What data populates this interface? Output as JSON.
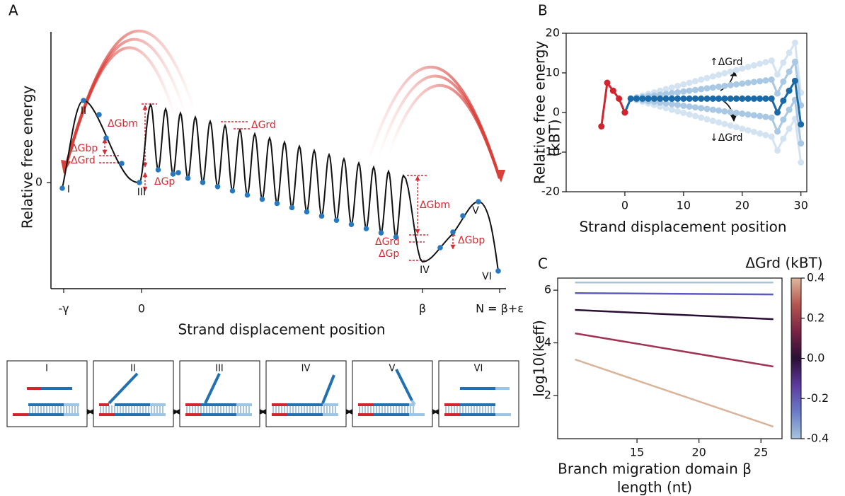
{
  "chart_data": [
    {
      "type": "schematic",
      "panel": "A",
      "ylabel": "Relative free energy",
      "xlabel": "Strand displacement position",
      "ytick_labels": [
        "0"
      ],
      "xtick_labels": [
        "-γ",
        "0",
        "β",
        "N = β+ε"
      ],
      "state_labels": [
        "I",
        "II",
        "III",
        "IV",
        "V",
        "VI"
      ],
      "annotations": [
        "ΔGbm",
        "ΔGbp",
        "ΔGrd",
        "ΔGp",
        "ΔGrd",
        "ΔGbm",
        "ΔGrd",
        "ΔGp",
        "ΔGbp"
      ],
      "box_labels": [
        "I",
        "II",
        "III",
        "IV",
        "V",
        "VI"
      ]
    },
    {
      "type": "line",
      "panel": "B",
      "ylabel": "Relative free energy",
      "ylabel2": "(kBT)",
      "xlabel": "Strand displacement position",
      "xlim": [
        -10,
        31
      ],
      "ylim": [
        -20,
        20
      ],
      "xticks": [
        0,
        10,
        20,
        30
      ],
      "yticks": [
        -20,
        -10,
        0,
        10,
        20
      ],
      "markers": true,
      "annotations": [
        "↑ΔGrd",
        "↓ΔGrd"
      ],
      "series": [
        {
          "color": "#d3e3f1",
          "x": [
            0,
            1,
            2,
            3,
            4,
            5,
            6,
            7,
            8,
            9,
            10,
            11,
            12,
            13,
            14,
            15,
            16,
            17,
            18,
            19,
            20,
            21,
            22,
            23,
            24,
            25,
            26,
            27,
            28,
            29,
            30
          ],
          "values": [
            0,
            3.5,
            3.9,
            4.3,
            4.7,
            5.1,
            5.5,
            5.9,
            6.3,
            6.7,
            7.1,
            7.5,
            7.9,
            8.3,
            8.7,
            9.1,
            9.5,
            9.9,
            10.3,
            10.7,
            11.1,
            11.5,
            11.9,
            12.3,
            12.7,
            13.1,
            9.6,
            12.6,
            15.1,
            17.6,
            5
          ]
        },
        {
          "color": "#d3e3f1",
          "x": [
            0,
            1,
            2,
            3,
            4,
            5,
            6,
            7,
            8,
            9,
            10,
            11,
            12,
            13,
            14,
            15,
            16,
            17,
            18,
            19,
            20,
            21,
            22,
            23,
            24,
            25,
            26,
            27,
            28,
            29,
            30
          ],
          "values": [
            0,
            3.5,
            3.1,
            2.7,
            2.3,
            1.9,
            1.5,
            1.1,
            0.7,
            0.3,
            -0.1,
            -0.5,
            -0.9,
            -1.3,
            -1.7,
            -2.1,
            -2.5,
            -2.9,
            -3.3,
            -3.7,
            -4.1,
            -4.5,
            -4.9,
            -5.3,
            -5.7,
            -6.1,
            -9.6,
            -6.6,
            -4.1,
            -1.6,
            -12.6
          ]
        },
        {
          "color": "#a9c8e4",
          "x": [
            0,
            1,
            2,
            3,
            4,
            5,
            6,
            7,
            8,
            9,
            10,
            11,
            12,
            13,
            14,
            15,
            16,
            17,
            18,
            19,
            20,
            21,
            22,
            23,
            24,
            25,
            26,
            27,
            28,
            29,
            30
          ],
          "values": [
            0,
            3.5,
            3.7,
            3.9,
            4.1,
            4.3,
            4.5,
            4.7,
            4.9,
            5.1,
            5.3,
            5.5,
            5.7,
            5.9,
            6.1,
            6.3,
            6.5,
            6.7,
            6.9,
            7.1,
            7.3,
            7.5,
            7.7,
            7.9,
            8.1,
            8.3,
            4.8,
            7.8,
            10.3,
            12.8,
            1.8
          ]
        },
        {
          "color": "#a9c8e4",
          "x": [
            0,
            1,
            2,
            3,
            4,
            5,
            6,
            7,
            8,
            9,
            10,
            11,
            12,
            13,
            14,
            15,
            16,
            17,
            18,
            19,
            20,
            21,
            22,
            23,
            24,
            25,
            26,
            27,
            28,
            29,
            30
          ],
          "values": [
            0,
            3.5,
            3.3,
            3.1,
            2.9,
            2.7,
            2.5,
            2.3,
            2.1,
            1.9,
            1.7,
            1.5,
            1.3,
            1.1,
            0.9,
            0.7,
            0.5,
            0.3,
            0.1,
            -0.1,
            -0.3,
            -0.5,
            -0.7,
            -0.9,
            -1.1,
            -1.3,
            -4.8,
            -1.8,
            0.7,
            3.2,
            -7.8
          ]
        },
        {
          "color": "#1b6aa8",
          "x": [
            0,
            1,
            2,
            3,
            4,
            5,
            6,
            7,
            8,
            9,
            10,
            11,
            12,
            13,
            14,
            15,
            16,
            17,
            18,
            19,
            20,
            21,
            22,
            23,
            24,
            25,
            26,
            27,
            28,
            29,
            30
          ],
          "values": [
            0,
            3.5,
            3.5,
            3.5,
            3.5,
            3.5,
            3.5,
            3.5,
            3.5,
            3.5,
            3.5,
            3.5,
            3.5,
            3.5,
            3.5,
            3.5,
            3.5,
            3.5,
            3.5,
            3.5,
            3.5,
            3.5,
            3.5,
            3.5,
            3.5,
            3.5,
            0,
            3,
            5.5,
            8,
            -3
          ]
        },
        {
          "color": "#d1242f",
          "x": [
            -4,
            -3,
            -2,
            -1,
            0
          ],
          "values": [
            -3.5,
            7.5,
            5.5,
            3.5,
            0
          ]
        }
      ]
    },
    {
      "type": "line",
      "panel": "C",
      "ylabel": "log10(keff)",
      "xlabel": [
        "Branch migration domain β",
        "length (nt)"
      ],
      "xlim": [
        8.6,
        26.7
      ],
      "ylim": [
        0.36,
        6.46
      ],
      "xticks": [
        15,
        20,
        25
      ],
      "yticks": [
        2,
        4,
        6
      ],
      "markers": false,
      "colorbar": {
        "label": "ΔGrd (kBT)",
        "lim": [
          -0.4,
          0.4
        ],
        "ticks": [
          -0.4,
          -0.2,
          {
            "value": 0,
            "label": "0.0"
          },
          0.2,
          0.4
        ],
        "colors": [
          "#a7c4dc",
          "#6a7cc8",
          "#5d3a9e",
          "#2a0f35",
          "#7a2346",
          "#b5544f",
          "#dfb89c"
        ]
      },
      "series": [
        {
          "color": "#a7c4dc",
          "x": [
            10,
            26
          ],
          "values": [
            6.29,
            6.29
          ]
        },
        {
          "color": "#5b5bbd",
          "x": [
            10,
            26
          ],
          "values": [
            5.89,
            5.84
          ]
        },
        {
          "color": "#2a0f35",
          "x": [
            10,
            26
          ],
          "values": [
            5.25,
            4.9
          ]
        },
        {
          "color": "#9e3452",
          "x": [
            10,
            26
          ],
          "values": [
            4.36,
            3.1
          ]
        },
        {
          "color": "#d9b39a",
          "x": [
            10,
            26
          ],
          "values": [
            3.37,
            0.82
          ]
        }
      ]
    }
  ]
}
